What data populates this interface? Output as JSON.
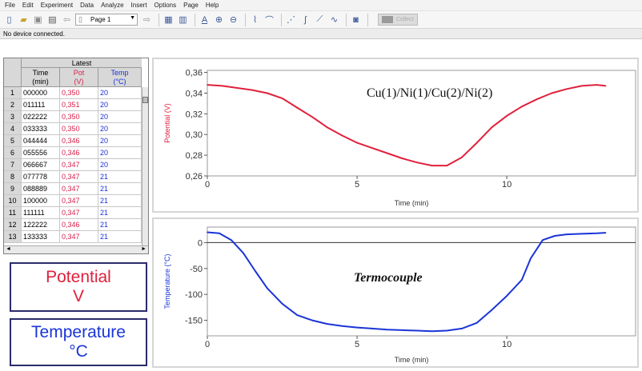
{
  "menu": [
    "File",
    "Edit",
    "Experiment",
    "Data",
    "Analyze",
    "Insert",
    "Options",
    "Page",
    "Help"
  ],
  "toolbar": {
    "page_label": "Page 1",
    "collect_label": "Collect"
  },
  "status": "No device connected.",
  "table": {
    "group_label": "Latest",
    "columns": [
      {
        "name": "Time",
        "unit": "(min)"
      },
      {
        "name": "Pot",
        "unit": "(V)"
      },
      {
        "name": "Temp",
        "unit": "(°C)"
      }
    ],
    "rows": [
      {
        "n": "1",
        "time": "000000",
        "pot": "0,350",
        "temp": "20"
      },
      {
        "n": "2",
        "time": "011111",
        "pot": "0,351",
        "temp": "20"
      },
      {
        "n": "3",
        "time": "022222",
        "pot": "0,350",
        "temp": "20"
      },
      {
        "n": "4",
        "time": "033333",
        "pot": "0,350",
        "temp": "20"
      },
      {
        "n": "5",
        "time": "044444",
        "pot": "0,346",
        "temp": "20"
      },
      {
        "n": "6",
        "time": "055556",
        "pot": "0,346",
        "temp": "20"
      },
      {
        "n": "7",
        "time": "066667",
        "pot": "0,347",
        "temp": "20"
      },
      {
        "n": "8",
        "time": "077778",
        "pot": "0,347",
        "temp": "21"
      },
      {
        "n": "9",
        "time": "088889",
        "pot": "0,347",
        "temp": "21"
      },
      {
        "n": "10",
        "time": "100000",
        "pot": "0,347",
        "temp": "21"
      },
      {
        "n": "11",
        "time": "111111",
        "pot": "0,347",
        "temp": "21"
      },
      {
        "n": "12",
        "time": "122222",
        "pot": "0,346",
        "temp": "21"
      },
      {
        "n": "13",
        "time": "133333",
        "pot": "0,347",
        "temp": "21"
      }
    ]
  },
  "meters": {
    "potential_name": "Potential",
    "potential_unit": "V",
    "temperature_name": "Temperature",
    "temperature_unit": "°C"
  },
  "colors": {
    "potential": "#e0203c",
    "temperature": "#1a34d8"
  },
  "chart_data": [
    {
      "type": "line",
      "annotation": "Cu(1)/Ni(1)/Cu(2)/Ni(2)",
      "xlabel": "Time (min)",
      "ylabel": "Potential (V)",
      "xlim": [
        0,
        14.3
      ],
      "ylim": [
        0.26,
        0.362
      ],
      "x_ticks": [
        "0",
        "5",
        "10"
      ],
      "y_ticks": [
        "0,26",
        "0,28",
        "0,30",
        "0,32",
        "0,34",
        "0,36"
      ],
      "series": [
        {
          "color": "#e0203c",
          "x": [
            0,
            0.5,
            1,
            1.5,
            2,
            2.5,
            3,
            3.5,
            4,
            4.5,
            5,
            5.5,
            6,
            6.5,
            7,
            7.5,
            8,
            8.5,
            9,
            9.5,
            10,
            10.5,
            11,
            11.5,
            12,
            12.5,
            13,
            13.3
          ],
          "y": [
            0.348,
            0.347,
            0.345,
            0.343,
            0.34,
            0.335,
            0.326,
            0.317,
            0.307,
            0.299,
            0.292,
            0.287,
            0.282,
            0.277,
            0.273,
            0.27,
            0.27,
            0.278,
            0.292,
            0.307,
            0.318,
            0.327,
            0.334,
            0.34,
            0.344,
            0.347,
            0.348,
            0.347
          ]
        }
      ]
    },
    {
      "type": "line",
      "annotation": "Termocouple",
      "xlabel": "Time (min)",
      "ylabel": "Temperature (°C)",
      "xlim": [
        0,
        14.3
      ],
      "ylim": [
        -180,
        30
      ],
      "x_ticks": [
        "0",
        "5",
        "10"
      ],
      "y_ticks": [
        "0",
        "-50",
        "-100",
        "-150"
      ],
      "series": [
        {
          "color": "#1a34d8",
          "x": [
            0,
            0.4,
            0.8,
            1.2,
            1.6,
            2,
            2.5,
            3,
            3.5,
            4,
            4.5,
            5,
            5.5,
            6,
            6.5,
            7,
            7.5,
            8,
            8.5,
            9,
            9.5,
            10,
            10.5,
            10.8,
            11.2,
            11.6,
            12,
            12.5,
            13,
            13.3
          ],
          "y": [
            20,
            18,
            5,
            -20,
            -55,
            -88,
            -118,
            -140,
            -150,
            -157,
            -161,
            -164,
            -166,
            -168,
            -169,
            -170,
            -171,
            -170,
            -166,
            -155,
            -130,
            -103,
            -72,
            -30,
            5,
            13,
            16,
            17,
            18,
            19
          ]
        }
      ]
    }
  ]
}
